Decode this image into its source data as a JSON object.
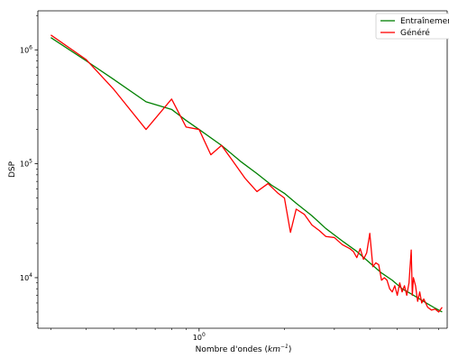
{
  "chart_data": {
    "type": "line",
    "title": "",
    "xlabel": "Nombre d'ondes (",
    "xlabel_unit": "km",
    "xlabel_unit_exp": "−1",
    "xlabel_close": ")",
    "ylabel": "DSP",
    "xscale": "log",
    "yscale": "log",
    "xlim": [
      0.27,
      7.5
    ],
    "ylim": [
      3600,
      2200000
    ],
    "x_ticks": [
      {
        "value": 1,
        "label": "10",
        "exp": "0"
      }
    ],
    "y_ticks": [
      {
        "value": 10000,
        "label": "10",
        "exp": "4"
      },
      {
        "value": 100000,
        "label": "10",
        "exp": "5"
      },
      {
        "value": 1000000,
        "label": "10",
        "exp": "6"
      }
    ],
    "legend": "top-right",
    "grid": false,
    "series": [
      {
        "name": "Entraînement",
        "color": "#008000",
        "x": [
          0.3,
          0.4,
          0.5,
          0.65,
          0.8,
          0.9,
          1.0,
          1.2,
          1.4,
          1.6,
          1.8,
          2.0,
          2.2,
          2.5,
          2.8,
          3.2,
          3.6,
          4.0,
          4.4,
          4.8,
          5.2,
          5.6,
          6.0,
          6.4,
          6.8,
          7.2
        ],
        "y": [
          1280000,
          800000,
          550000,
          350000,
          300000,
          240000,
          200000,
          145000,
          105000,
          82000,
          65000,
          55000,
          45000,
          35000,
          27000,
          21000,
          17000,
          13500,
          11000,
          9500,
          8000,
          7200,
          6500,
          5900,
          5400,
          5000
        ]
      },
      {
        "name": "Généré",
        "color": "#ff0000",
        "x": [
          0.3,
          0.4,
          0.5,
          0.65,
          0.8,
          0.9,
          1.0,
          1.1,
          1.2,
          1.3,
          1.45,
          1.6,
          1.75,
          1.9,
          2.0,
          2.1,
          2.2,
          2.35,
          2.5,
          2.65,
          2.8,
          3.0,
          3.2,
          3.4,
          3.5,
          3.6,
          3.7,
          3.8,
          3.9,
          4.0,
          4.1,
          4.2,
          4.3,
          4.4,
          4.5,
          4.6,
          4.7,
          4.8,
          4.9,
          5.0,
          5.1,
          5.2,
          5.3,
          5.4,
          5.5,
          5.6,
          5.65,
          5.7,
          5.8,
          5.9,
          6.0,
          6.1,
          6.2,
          6.4,
          6.6,
          6.8,
          7.0,
          7.2
        ],
        "y": [
          1350000,
          820000,
          450000,
          200000,
          370000,
          210000,
          200000,
          120000,
          145000,
          110000,
          75000,
          57000,
          67000,
          55000,
          50000,
          25000,
          40000,
          36000,
          29000,
          26000,
          23000,
          22500,
          19500,
          18000,
          17000,
          15000,
          18000,
          14500,
          16500,
          24500,
          12500,
          13500,
          13000,
          9500,
          10000,
          9500,
          8000,
          7500,
          8500,
          7000,
          9000,
          7500,
          8500,
          7000,
          9000,
          17500,
          7000,
          10000,
          8500,
          6200,
          7500,
          6000,
          6500,
          5500,
          5200,
          5300,
          5000,
          5500
        ]
      }
    ]
  }
}
